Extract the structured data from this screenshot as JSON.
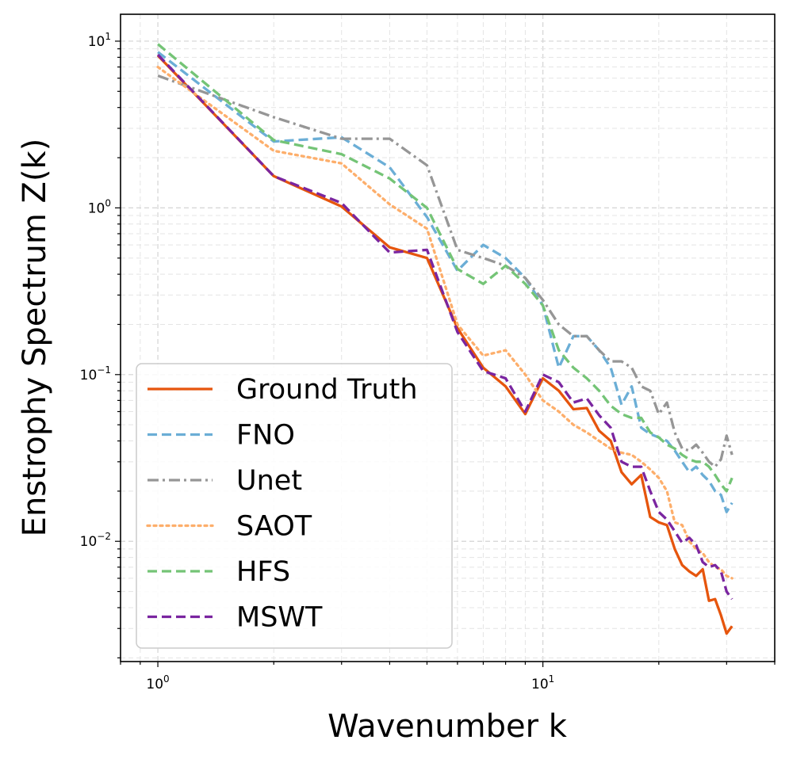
{
  "chart_data": {
    "type": "line",
    "title": "",
    "xlabel": "Wavenumber k",
    "ylabel": "Enstrophy Spectrum Z(k)",
    "xscale": "log",
    "yscale": "log",
    "xlim": [
      0.8,
      40
    ],
    "ylim": [
      0.0019,
      14.5
    ],
    "grid": true,
    "legend_location": "lower-left",
    "x_ticks": [
      {
        "base": "10",
        "exp": "0",
        "value": 1
      },
      {
        "base": "10",
        "exp": "1",
        "value": 10
      }
    ],
    "y_ticks": [
      {
        "base": "10",
        "exp": "1",
        "value": 10
      },
      {
        "base": "10",
        "exp": "0",
        "value": 1
      },
      {
        "base": "10",
        "exp": "−1",
        "value": 0.1
      },
      {
        "base": "10",
        "exp": "−2",
        "value": 0.01
      }
    ],
    "x": [
      1,
      2,
      3,
      4,
      5,
      6,
      7,
      8,
      9,
      10,
      11,
      12,
      13,
      14,
      15,
      16,
      17,
      18,
      19,
      20,
      21,
      22,
      23,
      24,
      25,
      26,
      27,
      28,
      29,
      30,
      31
    ],
    "series": [
      {
        "name": "Ground Truth",
        "color": "#e6550d",
        "dash": "solid",
        "values": [
          8.2,
          1.55,
          1.02,
          0.58,
          0.5,
          0.19,
          0.11,
          0.085,
          0.058,
          0.095,
          0.08,
          0.062,
          0.063,
          0.046,
          0.04,
          0.026,
          0.022,
          0.025,
          0.014,
          0.013,
          0.0125,
          0.009,
          0.0072,
          0.0066,
          0.0062,
          0.0068,
          0.0044,
          0.0045,
          0.0036,
          0.0028,
          0.0031
        ]
      },
      {
        "name": "FNO",
        "color": "#6baed6",
        "dash": "dashed",
        "values": [
          8.6,
          2.5,
          2.65,
          1.75,
          0.88,
          0.42,
          0.6,
          0.5,
          0.38,
          0.26,
          0.11,
          0.17,
          0.17,
          0.14,
          0.11,
          0.066,
          0.085,
          0.048,
          0.044,
          0.042,
          0.04,
          0.035,
          0.03,
          0.026,
          0.028,
          0.025,
          0.023,
          0.02,
          0.019,
          0.015,
          0.017
        ]
      },
      {
        "name": "Unet",
        "color": "#969696",
        "dash": "dashdot",
        "values": [
          6.2,
          3.5,
          2.6,
          2.6,
          1.8,
          0.56,
          0.5,
          0.45,
          0.38,
          0.28,
          0.2,
          0.17,
          0.17,
          0.14,
          0.12,
          0.12,
          0.11,
          0.085,
          0.08,
          0.058,
          0.068,
          0.045,
          0.036,
          0.035,
          0.038,
          0.034,
          0.03,
          0.028,
          0.031,
          0.043,
          0.033
        ]
      },
      {
        "name": "SAOT",
        "color": "#fdae6b",
        "dash": "dotted",
        "values": [
          7.0,
          2.2,
          1.85,
          1.05,
          0.75,
          0.2,
          0.13,
          0.14,
          0.1,
          0.07,
          0.06,
          0.05,
          0.045,
          0.04,
          0.036,
          0.034,
          0.033,
          0.03,
          0.027,
          0.024,
          0.02,
          0.013,
          0.0125,
          0.01,
          0.009,
          0.0085,
          0.0075,
          0.007,
          0.0068,
          0.0062,
          0.006
        ]
      },
      {
        "name": "HFS",
        "color": "#74c476",
        "dash": "dashed",
        "values": [
          9.6,
          2.55,
          2.1,
          1.5,
          1.0,
          0.43,
          0.35,
          0.45,
          0.35,
          0.26,
          0.14,
          0.11,
          0.095,
          0.08,
          0.065,
          0.058,
          0.055,
          0.055,
          0.045,
          0.042,
          0.038,
          0.036,
          0.033,
          0.031,
          0.03,
          0.03,
          0.028,
          0.025,
          0.022,
          0.02,
          0.024
        ]
      },
      {
        "name": "MSWT",
        "color": "#7a25a0",
        "dash": "dashed",
        "values": [
          8.3,
          1.55,
          1.07,
          0.54,
          0.56,
          0.18,
          0.105,
          0.095,
          0.06,
          0.1,
          0.09,
          0.068,
          0.072,
          0.057,
          0.048,
          0.03,
          0.028,
          0.028,
          0.02,
          0.015,
          0.0135,
          0.0115,
          0.0098,
          0.0105,
          0.0095,
          0.0075,
          0.007,
          0.0072,
          0.0066,
          0.005,
          0.0045
        ]
      }
    ]
  }
}
